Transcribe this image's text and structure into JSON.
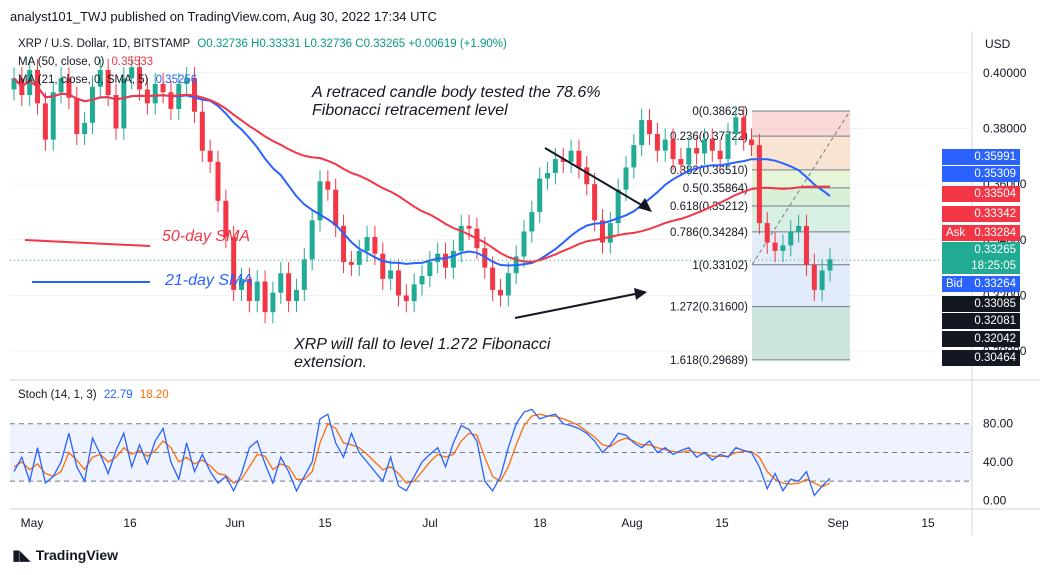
{
  "header": {
    "text": "analyst101_TWJ published on TradingView.com, Aug 30, 2022 17:34 UTC"
  },
  "legend": {
    "symbol": "XRP / U.S. Dollar, 1D, BITSTAMP",
    "ohlc": "O0.32736  H0.33331  L0.32736  C0.33265  +0.00619 (+1.90%)",
    "ma50_label": "MA (50, close, 0)",
    "ma50_value": "0.35533",
    "ma21_label": "MA (21, close, 0, SMA, 5)",
    "ma21_value": "0.35256",
    "stoch_label": "Stoch (14, 1, 3)",
    "stoch_k": "22.79",
    "stoch_d": "18.20"
  },
  "annotations": {
    "top": "A retraced candle body tested the 78.6% Fibonacci retracement level",
    "bottom": "XRP will fall to level 1.272 Fibonacci extension.",
    "sma50": "50-day SMA",
    "sma21": "21-day SMA"
  },
  "price_tags": [
    {
      "label": "",
      "value": "0.35991",
      "color": "#2962ff"
    },
    {
      "label": "",
      "value": "0.35309",
      "color": "#2962ff"
    },
    {
      "label": "",
      "value": "0.33504",
      "color": "#f23645"
    },
    {
      "label": "",
      "value": "0.33342",
      "color": "#f23645"
    },
    {
      "label": "Ask",
      "value": "0.33284",
      "color": "#f23645"
    },
    {
      "label": "",
      "value": "0.33265",
      "color": "#22ab94"
    },
    {
      "label": "",
      "value": "18:25:05",
      "color": "#22ab94"
    },
    {
      "label": "Bid",
      "value": "0.33264",
      "color": "#2962ff"
    },
    {
      "label": "",
      "value": "0.33085",
      "color": "#131722"
    },
    {
      "label": "",
      "value": "0.32081",
      "color": "#131722"
    },
    {
      "label": "",
      "value": "0.32042",
      "color": "#131722"
    },
    {
      "label": "",
      "value": "0.30464",
      "color": "#131722"
    }
  ],
  "footer": {
    "brand": "TradingView"
  },
  "chart_data": {
    "type": "candlestick",
    "currency": "USD",
    "ylim": [
      0.29,
      0.415
    ],
    "y_ticks": [
      0.4,
      0.38,
      0.36,
      0.34,
      0.32,
      0.3
    ],
    "y_tick_labels": [
      "0.40000",
      "0.38000",
      "0.36000",
      "0.34000",
      "0.32000",
      "0.30000"
    ],
    "x_tick_labels": [
      "May",
      "16",
      "Jun",
      "15",
      "Jul",
      "18",
      "Aug",
      "15",
      "Sep",
      "15"
    ],
    "candles_close": [
      0.398,
      0.392,
      0.401,
      0.389,
      0.376,
      0.393,
      0.398,
      0.391,
      0.378,
      0.382,
      0.395,
      0.401,
      0.392,
      0.38,
      0.398,
      0.402,
      0.394,
      0.389,
      0.396,
      0.393,
      0.387,
      0.396,
      0.398,
      0.386,
      0.372,
      0.368,
      0.354,
      0.341,
      0.322,
      0.326,
      0.318,
      0.325,
      0.314,
      0.321,
      0.328,
      0.318,
      0.322,
      0.333,
      0.347,
      0.361,
      0.358,
      0.345,
      0.332,
      0.331,
      0.336,
      0.341,
      0.335,
      0.326,
      0.329,
      0.32,
      0.318,
      0.324,
      0.327,
      0.332,
      0.335,
      0.33,
      0.336,
      0.345,
      0.344,
      0.337,
      0.33,
      0.322,
      0.32,
      0.328,
      0.334,
      0.343,
      0.35,
      0.362,
      0.364,
      0.369,
      0.368,
      0.372,
      0.366,
      0.36,
      0.347,
      0.339,
      0.346,
      0.358,
      0.366,
      0.374,
      0.383,
      0.378,
      0.372,
      0.376,
      0.369,
      0.367,
      0.373,
      0.371,
      0.376,
      0.372,
      0.369,
      0.378,
      0.384,
      0.376,
      0.374,
      0.346,
      0.339,
      0.336,
      0.338,
      0.343,
      0.345,
      0.331,
      0.322,
      0.329,
      0.333
    ],
    "fib_levels": [
      {
        "label": "0(0.38625)",
        "value": 0.38625
      },
      {
        "label": "0.236(0.37722)",
        "value": 0.37722
      },
      {
        "label": "0.382(0.36510)",
        "value": 0.3651
      },
      {
        "label": "0.5(0.35864)",
        "value": 0.35864
      },
      {
        "label": "0.618(0.35212)",
        "value": 0.35212
      },
      {
        "label": "0.786(0.34284)",
        "value": 0.34284
      },
      {
        "label": "1(0.33102)",
        "value": 0.33102
      },
      {
        "label": "1.272(0.31600)",
        "value": 0.316
      },
      {
        "label": "1.618(0.29689)",
        "value": 0.29689
      }
    ],
    "stochastic": {
      "ylim": [
        -8,
        110
      ],
      "y_ticks": [
        80,
        40,
        0
      ],
      "y_tick_labels": [
        "80.00",
        "40.00",
        "0.00"
      ],
      "k": [
        30,
        45,
        20,
        55,
        18,
        25,
        40,
        70,
        35,
        20,
        65,
        48,
        28,
        52,
        70,
        35,
        58,
        38,
        62,
        75,
        40,
        22,
        60,
        30,
        48,
        30,
        18,
        25,
        10,
        28,
        55,
        62,
        38,
        18,
        45,
        30,
        10,
        25,
        40,
        85,
        90,
        60,
        45,
        70,
        50,
        40,
        30,
        20,
        45,
        15,
        10,
        25,
        40,
        48,
        55,
        35,
        60,
        78,
        74,
        62,
        20,
        10,
        25,
        55,
        80,
        92,
        95,
        85,
        88,
        90,
        80,
        78,
        75,
        70,
        62,
        50,
        58,
        70,
        68,
        60,
        55,
        62,
        50,
        55,
        48,
        52,
        55,
        45,
        50,
        42,
        48,
        45,
        55,
        52,
        50,
        35,
        12,
        28,
        10,
        22,
        20,
        30,
        5,
        15,
        23
      ],
      "d": [
        35,
        40,
        32,
        38,
        28,
        25,
        30,
        50,
        42,
        32,
        45,
        48,
        40,
        45,
        55,
        48,
        52,
        46,
        52,
        62,
        55,
        40,
        45,
        38,
        42,
        36,
        28,
        26,
        18,
        22,
        35,
        48,
        46,
        32,
        38,
        35,
        22,
        22,
        30,
        60,
        80,
        75,
        60,
        58,
        55,
        48,
        40,
        32,
        35,
        28,
        18,
        20,
        30,
        40,
        48,
        45,
        48,
        62,
        70,
        68,
        45,
        25,
        20,
        35,
        58,
        78,
        88,
        90,
        88,
        88,
        85,
        82,
        78,
        72,
        66,
        58,
        56,
        62,
        65,
        62,
        58,
        58,
        55,
        53,
        51,
        50,
        52,
        50,
        49,
        46,
        46,
        46,
        50,
        51,
        51,
        45,
        30,
        22,
        18,
        17,
        18,
        22,
        18,
        14,
        18
      ]
    }
  }
}
